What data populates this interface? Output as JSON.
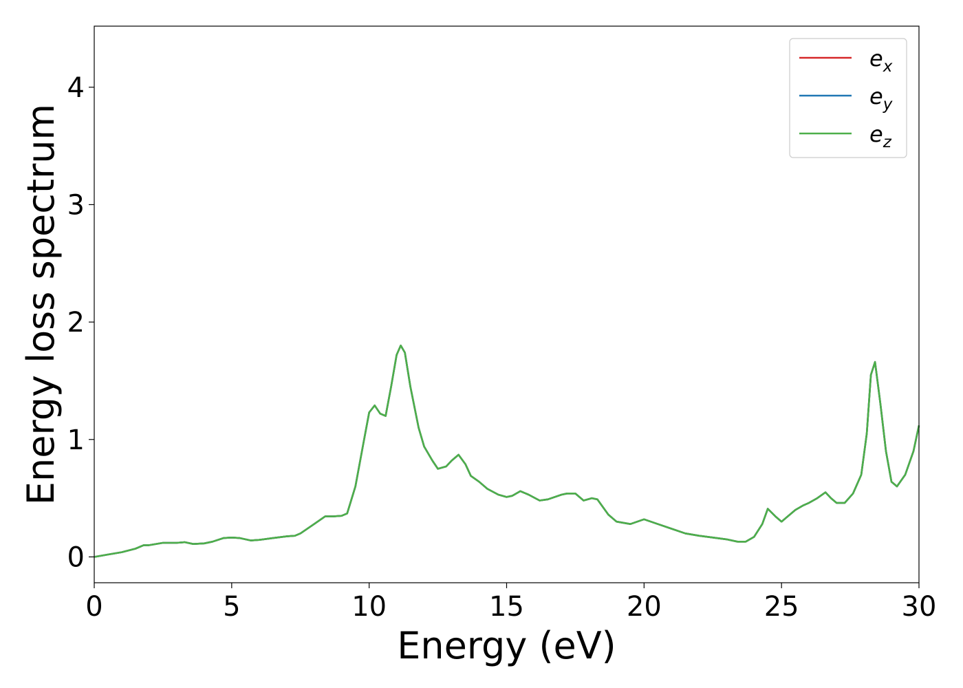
{
  "chart_data": {
    "type": "line",
    "xlabel": "Energy (eV)",
    "ylabel": "Energy loss spectrum",
    "xlim": [
      0,
      30
    ],
    "ylim": [
      -0.22,
      4.52
    ],
    "xticks": [
      "0",
      "5",
      "10",
      "15",
      "20",
      "25",
      "30"
    ],
    "xtick_values": [
      0,
      5,
      10,
      15,
      20,
      25,
      30
    ],
    "yticks": [
      "0",
      "1",
      "2",
      "3",
      "4"
    ],
    "ytick_values": [
      0,
      1,
      2,
      3,
      4
    ],
    "grid": false,
    "legend_position": "top-right",
    "x": [
      0.0,
      0.5,
      1.0,
      1.5,
      1.8,
      2.0,
      2.5,
      3.0,
      3.3,
      3.6,
      4.0,
      4.3,
      4.7,
      5.0,
      5.3,
      5.7,
      6.0,
      6.5,
      7.0,
      7.3,
      7.5,
      8.0,
      8.4,
      8.7,
      9.0,
      9.2,
      9.5,
      9.8,
      10.0,
      10.2,
      10.4,
      10.6,
      10.8,
      11.0,
      11.15,
      11.3,
      11.5,
      11.8,
      12.0,
      12.3,
      12.5,
      12.8,
      13.0,
      13.25,
      13.5,
      13.7,
      14.0,
      14.3,
      14.7,
      15.0,
      15.2,
      15.5,
      15.8,
      16.2,
      16.5,
      17.0,
      17.2,
      17.5,
      17.8,
      18.1,
      18.3,
      18.7,
      19.0,
      19.5,
      20.0,
      20.5,
      21.0,
      21.5,
      22.0,
      22.5,
      23.0,
      23.4,
      23.7,
      24.0,
      24.3,
      24.5,
      24.8,
      25.0,
      25.5,
      25.8,
      26.0,
      26.3,
      26.6,
      26.8,
      27.0,
      27.3,
      27.6,
      27.9,
      28.1,
      28.25,
      28.4,
      28.6,
      28.8,
      29.0,
      29.2,
      29.5,
      29.8,
      30.0
    ],
    "series": [
      {
        "name": "e_x",
        "color": "#d62728",
        "values": [
          0.0,
          0.02,
          0.04,
          0.07,
          0.1,
          0.1,
          0.12,
          0.12,
          0.125,
          0.11,
          0.115,
          0.13,
          0.16,
          0.165,
          0.16,
          0.14,
          0.145,
          0.16,
          0.175,
          0.18,
          0.2,
          0.28,
          0.345,
          0.345,
          0.35,
          0.37,
          0.6,
          0.98,
          1.23,
          1.29,
          1.22,
          1.2,
          1.45,
          1.72,
          1.8,
          1.74,
          1.45,
          1.1,
          0.94,
          0.82,
          0.75,
          0.77,
          0.82,
          0.87,
          0.79,
          0.69,
          0.64,
          0.58,
          0.53,
          0.51,
          0.52,
          0.56,
          0.53,
          0.48,
          0.49,
          0.53,
          0.54,
          0.54,
          0.48,
          0.5,
          0.49,
          0.36,
          0.3,
          0.28,
          0.32,
          0.28,
          0.24,
          0.2,
          0.18,
          0.165,
          0.15,
          0.13,
          0.13,
          0.17,
          0.28,
          0.41,
          0.34,
          0.3,
          0.4,
          0.44,
          0.46,
          0.5,
          0.55,
          0.5,
          0.46,
          0.46,
          0.54,
          0.7,
          1.05,
          1.55,
          1.66,
          1.3,
          0.9,
          0.64,
          0.6,
          0.7,
          0.9,
          1.12
        ]
      },
      {
        "name": "e_y",
        "color": "#1f77b4",
        "values": [
          0.0,
          0.02,
          0.04,
          0.07,
          0.1,
          0.1,
          0.12,
          0.12,
          0.125,
          0.11,
          0.115,
          0.13,
          0.16,
          0.165,
          0.16,
          0.14,
          0.145,
          0.16,
          0.175,
          0.18,
          0.2,
          0.28,
          0.345,
          0.345,
          0.35,
          0.37,
          0.6,
          0.98,
          1.23,
          1.29,
          1.22,
          1.2,
          1.45,
          1.72,
          1.8,
          1.74,
          1.45,
          1.1,
          0.94,
          0.82,
          0.75,
          0.77,
          0.82,
          0.87,
          0.79,
          0.69,
          0.64,
          0.58,
          0.53,
          0.51,
          0.52,
          0.56,
          0.53,
          0.48,
          0.49,
          0.53,
          0.54,
          0.54,
          0.48,
          0.5,
          0.49,
          0.36,
          0.3,
          0.28,
          0.32,
          0.28,
          0.24,
          0.2,
          0.18,
          0.165,
          0.15,
          0.13,
          0.13,
          0.17,
          0.28,
          0.41,
          0.34,
          0.3,
          0.4,
          0.44,
          0.46,
          0.5,
          0.55,
          0.5,
          0.46,
          0.46,
          0.54,
          0.7,
          1.05,
          1.55,
          1.66,
          1.3,
          0.9,
          0.64,
          0.6,
          0.7,
          0.9,
          1.12
        ]
      },
      {
        "name": "e_z",
        "color": "#4daf4a",
        "values": [
          0.0,
          0.02,
          0.04,
          0.07,
          0.1,
          0.1,
          0.12,
          0.12,
          0.125,
          0.11,
          0.115,
          0.13,
          0.16,
          0.165,
          0.16,
          0.14,
          0.145,
          0.16,
          0.175,
          0.18,
          0.2,
          0.28,
          0.345,
          0.345,
          0.35,
          0.37,
          0.6,
          0.98,
          1.23,
          1.29,
          1.22,
          1.2,
          1.45,
          1.72,
          1.8,
          1.74,
          1.45,
          1.1,
          0.94,
          0.82,
          0.75,
          0.77,
          0.82,
          0.87,
          0.79,
          0.69,
          0.64,
          0.58,
          0.53,
          0.51,
          0.52,
          0.56,
          0.53,
          0.48,
          0.49,
          0.53,
          0.54,
          0.54,
          0.48,
          0.5,
          0.49,
          0.36,
          0.3,
          0.28,
          0.32,
          0.28,
          0.24,
          0.2,
          0.18,
          0.165,
          0.15,
          0.13,
          0.13,
          0.17,
          0.28,
          0.41,
          0.34,
          0.3,
          0.4,
          0.44,
          0.46,
          0.5,
          0.55,
          0.5,
          0.46,
          0.46,
          0.54,
          0.7,
          1.05,
          1.55,
          1.66,
          1.3,
          0.9,
          0.64,
          0.6,
          0.7,
          0.9,
          1.12
        ]
      }
    ],
    "legend": [
      {
        "base": "e",
        "sub": "x",
        "color": "#d62728"
      },
      {
        "base": "e",
        "sub": "y",
        "color": "#1f77b4"
      },
      {
        "base": "e",
        "sub": "z",
        "color": "#4daf4a"
      }
    ]
  }
}
